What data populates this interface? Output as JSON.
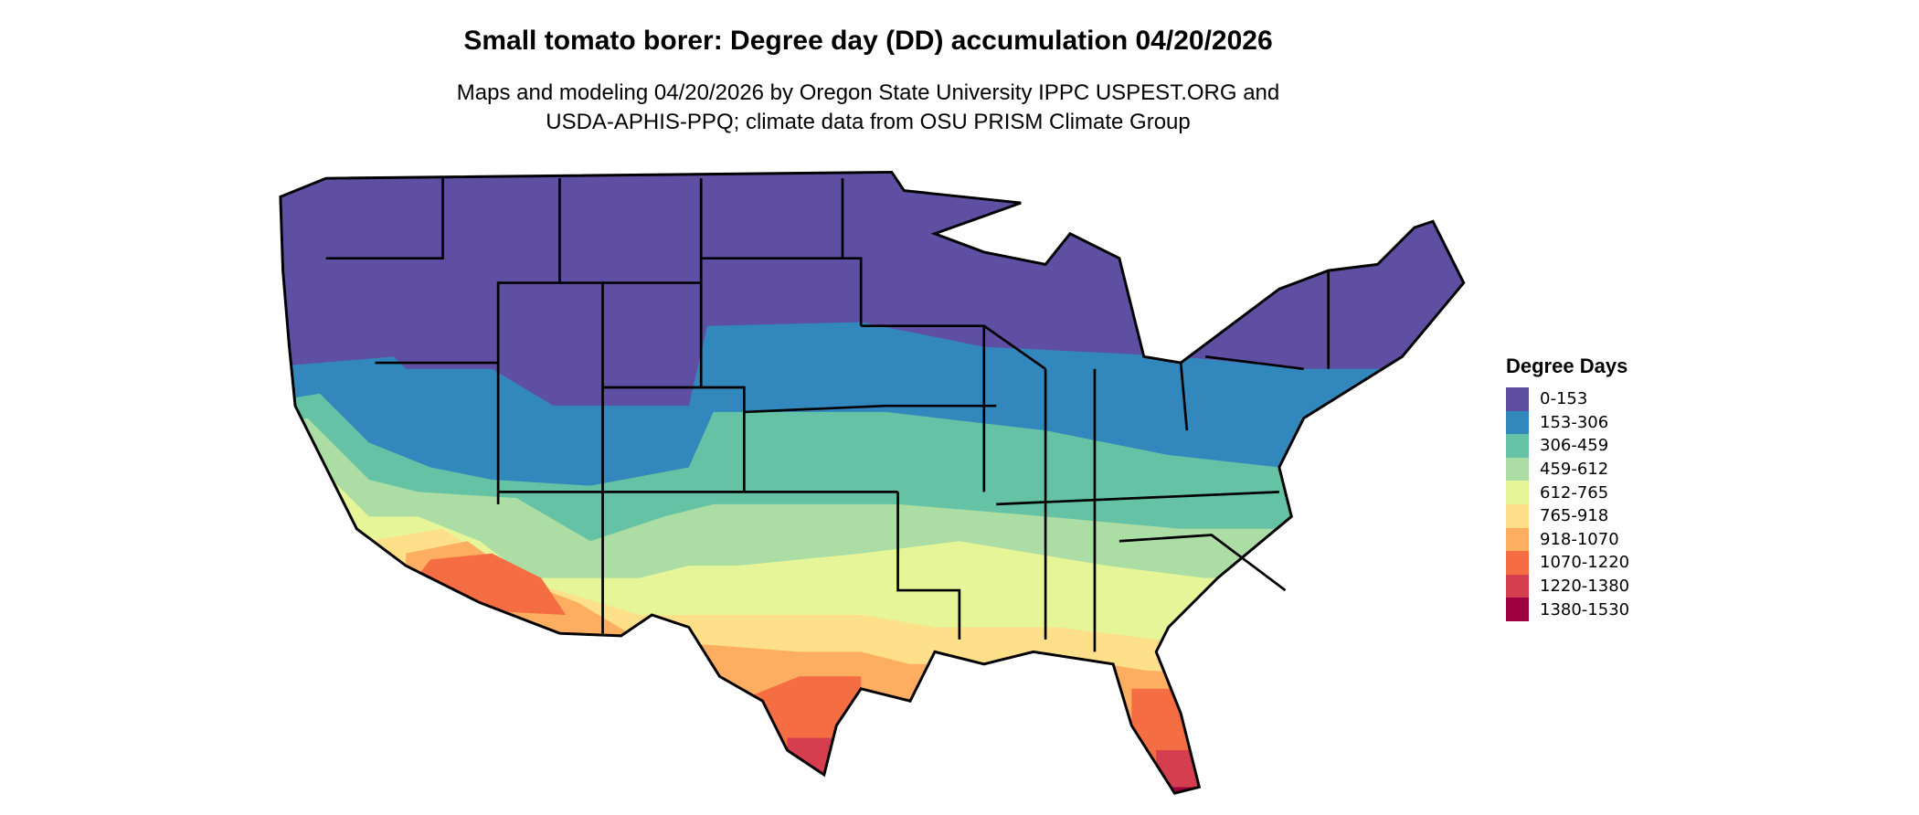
{
  "title": "Small tomato borer: Degree day (DD) accumulation 04/20/2026",
  "subtitle_line1": "Maps and modeling 04/20/2026 by Oregon State University IPPC USPEST.ORG and",
  "subtitle_line2": "USDA-APHIS-PPQ; climate data from OSU PRISM Climate Group",
  "legend": {
    "title": "Degree Days",
    "items": [
      {
        "label": "0-153",
        "color": "#5E4FA2"
      },
      {
        "label": "153-306",
        "color": "#3288BD"
      },
      {
        "label": "306-459",
        "color": "#66C2A5"
      },
      {
        "label": "459-612",
        "color": "#ABDDA4"
      },
      {
        "label": "612-765",
        "color": "#E6F598"
      },
      {
        "label": "765-918",
        "color": "#FEE08B"
      },
      {
        "label": "918-1070",
        "color": "#FDAE61"
      },
      {
        "label": "1070-1220",
        "color": "#F46D43"
      },
      {
        "label": "1220-1380",
        "color": "#D53E4F"
      },
      {
        "label": "1380-1530",
        "color": "#9E0142"
      }
    ]
  }
}
